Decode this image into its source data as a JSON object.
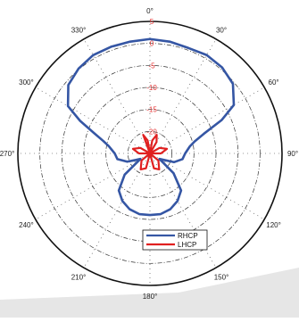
{
  "chart_data": {
    "type": "polar-line",
    "title": "",
    "angle_tick_labels": [
      "0°",
      "30°",
      "60°",
      "90°",
      "120°",
      "150°",
      "180°",
      "210°",
      "240°",
      "270°",
      "300°",
      "330°"
    ],
    "angle_ticks_deg": [
      0,
      30,
      60,
      90,
      120,
      150,
      180,
      210,
      240,
      270,
      300,
      330
    ],
    "radial_tick_labels": [
      "5",
      "0",
      "-5",
      "-10",
      "-15",
      "-20"
    ],
    "radial_ticks": [
      5,
      0,
      -5,
      -10,
      -15,
      -20
    ],
    "radial_range": [
      -25,
      5
    ],
    "angle_zero": "top",
    "angle_direction": "clockwise",
    "grid": true,
    "legend_position": "bottom-right",
    "colors": {
      "RHCP": "#3556a4",
      "LHCP": "#e02020",
      "radial_label": "#e53030",
      "outer_ring": "#111111",
      "grid": "#333333"
    },
    "series": [
      {
        "name": "RHCP",
        "points": [
          [
            0,
            1.0
          ],
          [
            10,
            0.8
          ],
          [
            20,
            0.5
          ],
          [
            30,
            0.8
          ],
          [
            40,
            0.5
          ],
          [
            50,
            -0.4
          ],
          [
            60,
            -3.0
          ],
          [
            65,
            -7.0
          ],
          [
            70,
            -12.0
          ],
          [
            75,
            -14.5
          ],
          [
            80,
            -15.8
          ],
          [
            90,
            -17.0
          ],
          [
            100,
            -17.5
          ],
          [
            110,
            -19.2
          ],
          [
            115,
            -21.5
          ],
          [
            120,
            -22.5
          ],
          [
            130,
            -18.0
          ],
          [
            140,
            -14.0
          ],
          [
            150,
            -12.5
          ],
          [
            160,
            -11.5
          ],
          [
            170,
            -11.0
          ],
          [
            180,
            -11.0
          ],
          [
            190,
            -11.0
          ],
          [
            200,
            -11.5
          ],
          [
            210,
            -12.5
          ],
          [
            220,
            -14.0
          ],
          [
            230,
            -17.5
          ],
          [
            240,
            -22.5
          ],
          [
            245,
            -21.5
          ],
          [
            250,
            -19.5
          ],
          [
            260,
            -17.5
          ],
          [
            270,
            -17.0
          ],
          [
            280,
            -15.5
          ],
          [
            285,
            -14.0
          ],
          [
            290,
            -11.5
          ],
          [
            295,
            -7.5
          ],
          [
            300,
            -3.5
          ],
          [
            310,
            -0.8
          ],
          [
            320,
            0.2
          ],
          [
            330,
            0.8
          ],
          [
            340,
            0.8
          ],
          [
            350,
            0.8
          ],
          [
            360,
            1.0
          ]
        ]
      },
      {
        "name": "LHCP",
        "points": [
          [
            0,
            -25.0
          ],
          [
            10,
            -22.0
          ],
          [
            20,
            -20.5
          ],
          [
            30,
            -22.0
          ],
          [
            40,
            -25.0
          ],
          [
            60,
            -22.5
          ],
          [
            75,
            -21.0
          ],
          [
            90,
            -22.5
          ],
          [
            105,
            -25.0
          ],
          [
            130,
            -22.5
          ],
          [
            150,
            -20.8
          ],
          [
            165,
            -21.5
          ],
          [
            180,
            -25.0
          ],
          [
            195,
            -21.5
          ],
          [
            210,
            -20.8
          ],
          [
            230,
            -22.5
          ],
          [
            255,
            -25.0
          ],
          [
            270,
            -22.5
          ],
          [
            285,
            -21.0
          ],
          [
            300,
            -22.5
          ],
          [
            320,
            -25.0
          ],
          [
            340,
            -20.5
          ],
          [
            350,
            -22.0
          ],
          [
            360,
            -25.0
          ]
        ]
      }
    ]
  }
}
